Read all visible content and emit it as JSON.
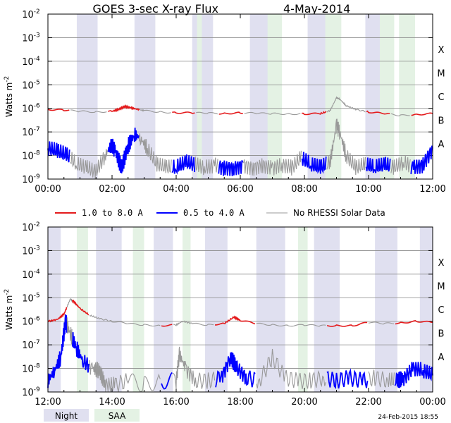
{
  "title": "GOES 3-sec X-ray Flux",
  "date": "4-May-2014",
  "ylabel_base": "Watts m",
  "ylabel_exp": "-2",
  "y_ticks": [
    {
      "base": "10",
      "exp": "-2",
      "value": 0.01
    },
    {
      "base": "10",
      "exp": "-3",
      "value": 0.001
    },
    {
      "base": "10",
      "exp": "-4",
      "value": 0.0001
    },
    {
      "base": "10",
      "exp": "-5",
      "value": 1e-05
    },
    {
      "base": "10",
      "exp": "-6",
      "value": 1e-06
    },
    {
      "base": "10",
      "exp": "-7",
      "value": 1e-07
    },
    {
      "base": "10",
      "exp": "-8",
      "value": 1e-08
    },
    {
      "base": "10",
      "exp": "-9",
      "value": 1e-09
    }
  ],
  "flare_classes": [
    {
      "label": "X",
      "value": 0.0001
    },
    {
      "label": "M",
      "value": 1e-05
    },
    {
      "label": "C",
      "value": 1e-06
    },
    {
      "label": "B",
      "value": 1e-07
    },
    {
      "label": "A",
      "value": 1e-08
    }
  ],
  "legend": {
    "long": "1.0 to 8.0 A",
    "short": "0.5 to 4.0 A",
    "norhessi": "No RHESSI Solar Data",
    "night": "Night",
    "saa": "SAA"
  },
  "timestamp": "24-Feb-2015 18:55",
  "colors": {
    "long": "#e41a1c",
    "short": "#0000ff",
    "gray": "#999999",
    "night": "#e0e0f0",
    "saa": "#e4f2e4",
    "grid": "#888888"
  },
  "chart_data": [
    {
      "type": "line",
      "panel": "top",
      "x_range": [
        "00:00",
        "12:00"
      ],
      "x_ticks": [
        "00:00",
        "02:00",
        "04:00",
        "06:00",
        "08:00",
        "10:00",
        "12:00"
      ],
      "y_scale": "log",
      "ylim": [
        1e-09,
        0.01
      ],
      "night_bands": [
        [
          0.9,
          1.55
        ],
        [
          2.7,
          3.35
        ],
        [
          4.5,
          5.15
        ],
        [
          6.3,
          6.95
        ],
        [
          8.1,
          8.75
        ],
        [
          9.9,
          10.55
        ]
      ],
      "saa_bands": [
        [
          4.65,
          4.8
        ],
        [
          6.85,
          7.3
        ],
        [
          8.65,
          9.15
        ],
        [
          10.35,
          10.8
        ],
        [
          10.95,
          11.45
        ]
      ],
      "norhessi_intervals": [
        [
          0.7,
          1.85
        ],
        [
          2.85,
          3.85
        ],
        [
          4.6,
          5.3
        ],
        [
          6.1,
          7.9
        ],
        [
          8.7,
          9.9
        ],
        [
          10.7,
          11.3
        ]
      ],
      "series": [
        {
          "name": "1.0 to 8.0 A",
          "key": "long",
          "x": [
            0,
            0.5,
            1,
            1.5,
            2,
            2.2,
            2.4,
            2.6,
            2.8,
            3.0,
            3.5,
            4,
            4.5,
            5,
            5.5,
            6,
            6.5,
            7,
            7.5,
            8,
            8.5,
            8.8,
            9.0,
            9.1,
            9.3,
            9.6,
            10,
            10.5,
            11,
            11.5,
            12
          ],
          "y": [
            9e-07,
            8.5e-07,
            7.5e-07,
            7e-07,
            7.5e-07,
            9e-07,
            1.2e-06,
            1.05e-06,
            9e-07,
            8e-07,
            7e-07,
            6.5e-07,
            6.5e-07,
            6.3e-07,
            6e-07,
            6.5e-07,
            6.2e-07,
            6e-07,
            5.8e-07,
            5.8e-07,
            6e-07,
            8e-07,
            2.8e-06,
            2.5e-06,
            1.3e-06,
            9e-07,
            7e-07,
            6e-07,
            5e-07,
            5.5e-07,
            6e-07
          ]
        },
        {
          "name": "0.5 to 4.0 A",
          "key": "short",
          "x": [
            0,
            0.3,
            0.6,
            0.9,
            1.2,
            1.5,
            1.8,
            2.0,
            2.1,
            2.3,
            2.5,
            2.7,
            2.9,
            3.1,
            3.4,
            3.7,
            4.0,
            4.3,
            4.6,
            4.9,
            5.2,
            5.5,
            5.8,
            6.1,
            6.4,
            6.7,
            7.0,
            7.3,
            7.6,
            7.9,
            8.2,
            8.5,
            8.8,
            9.0,
            9.1,
            9.3,
            9.6,
            9.9,
            10.2,
            10.5,
            10.8,
            11.1,
            11.4,
            11.7,
            12
          ],
          "y": [
            2e-08,
            1.5e-08,
            1e-08,
            4e-09,
            3e-09,
            2e-09,
            1.1e-08,
            3e-08,
            1.5e-08,
            3e-09,
            2.5e-08,
            8e-08,
            5e-08,
            2e-08,
            4e-09,
            3e-09,
            3e-09,
            5e-09,
            4e-09,
            3e-09,
            4e-09,
            3e-09,
            3e-09,
            4e-09,
            3e-09,
            4e-09,
            3e-09,
            4e-09,
            3e-09,
            8e-09,
            4e-09,
            3e-09,
            5e-09,
            2e-07,
            1e-07,
            1e-08,
            3e-09,
            4e-09,
            3e-09,
            4e-09,
            3e-09,
            5e-09,
            3e-09,
            4e-09,
            2e-08
          ]
        }
      ]
    },
    {
      "type": "line",
      "panel": "bottom",
      "x_range": [
        "12:00",
        "00:00"
      ],
      "x_ticks": [
        "12:00",
        "14:00",
        "16:00",
        "18:00",
        "20:00",
        "22:00",
        "00:00"
      ],
      "y_scale": "log",
      "ylim": [
        1e-09,
        0.01
      ],
      "night_bands": [
        [
          12.0,
          12.4
        ],
        [
          13.5,
          14.3
        ],
        [
          15.3,
          15.9
        ],
        [
          16.9,
          17.6
        ],
        [
          18.5,
          19.4
        ],
        [
          20.3,
          21.1
        ],
        [
          22.2,
          22.9
        ],
        [
          23.6,
          24.0
        ]
      ],
      "saa_bands": [
        [
          12.9,
          13.25
        ],
        [
          14.65,
          15.0
        ],
        [
          16.2,
          16.45
        ],
        [
          19.8,
          20.1
        ]
      ],
      "norhessi_intervals": [
        [
          12.6,
          12.75
        ],
        [
          13.3,
          15.5
        ],
        [
          15.9,
          17.2
        ],
        [
          18.5,
          20.7
        ],
        [
          22.0,
          22.8
        ]
      ],
      "series": [
        {
          "name": "1.0 to 8.0 A",
          "key": "long",
          "x": [
            12,
            12.3,
            12.5,
            12.7,
            12.8,
            13.0,
            13.3,
            13.6,
            14,
            14.5,
            15,
            15.5,
            16,
            16.2,
            16.5,
            17,
            17.5,
            17.8,
            18,
            18.5,
            19,
            19.5,
            20,
            20.5,
            21,
            21.5,
            22,
            22.5,
            23,
            23.5,
            24
          ],
          "y": [
            1e-06,
            1.2e-06,
            2e-06,
            9e-06,
            7e-06,
            3.5e-06,
            1.8e-06,
            1.3e-06,
            1e-06,
            8e-07,
            7e-07,
            6.5e-07,
            7e-07,
            1e-06,
            8e-07,
            7e-07,
            8e-07,
            1.5e-06,
            1.1e-06,
            8e-07,
            7e-07,
            6.5e-07,
            7e-07,
            6.5e-07,
            6.5e-07,
            6.5e-07,
            9e-07,
            8e-07,
            8.5e-07,
            1e-06,
            9e-07
          ]
        },
        {
          "name": "0.5 to 4.0 A",
          "key": "short",
          "x": [
            12,
            12.2,
            12.4,
            12.55,
            12.7,
            12.9,
            13.1,
            13.4,
            13.6,
            13.8,
            14.1,
            14.5,
            15.0,
            15.5,
            16.0,
            16.1,
            16.3,
            16.6,
            17.0,
            17.4,
            17.7,
            17.9,
            18.2,
            18.6,
            19.0,
            19.4,
            19.8,
            20.2,
            20.6,
            21.0,
            21.4,
            21.8,
            22.2,
            22.6,
            22.9,
            23.1,
            23.4,
            23.7,
            24
          ],
          "y": [
            3e-09,
            8e-09,
            3e-08,
            1e-06,
            3e-07,
            7e-08,
            2e-08,
            1e-08,
            8e-09,
            2e-09,
            2e-09,
            3e-09,
            2e-09,
            3e-09,
            3e-09,
            4e-08,
            1e-08,
            3e-09,
            3e-09,
            4e-09,
            3e-08,
            1e-08,
            4e-09,
            3e-09,
            3e-08,
            4e-09,
            3e-09,
            3e-09,
            4e-09,
            3e-09,
            4e-09,
            3e-09,
            4e-09,
            3e-09,
            3e-09,
            4e-09,
            1e-08,
            8e-09,
            5e-09
          ]
        }
      ]
    }
  ]
}
